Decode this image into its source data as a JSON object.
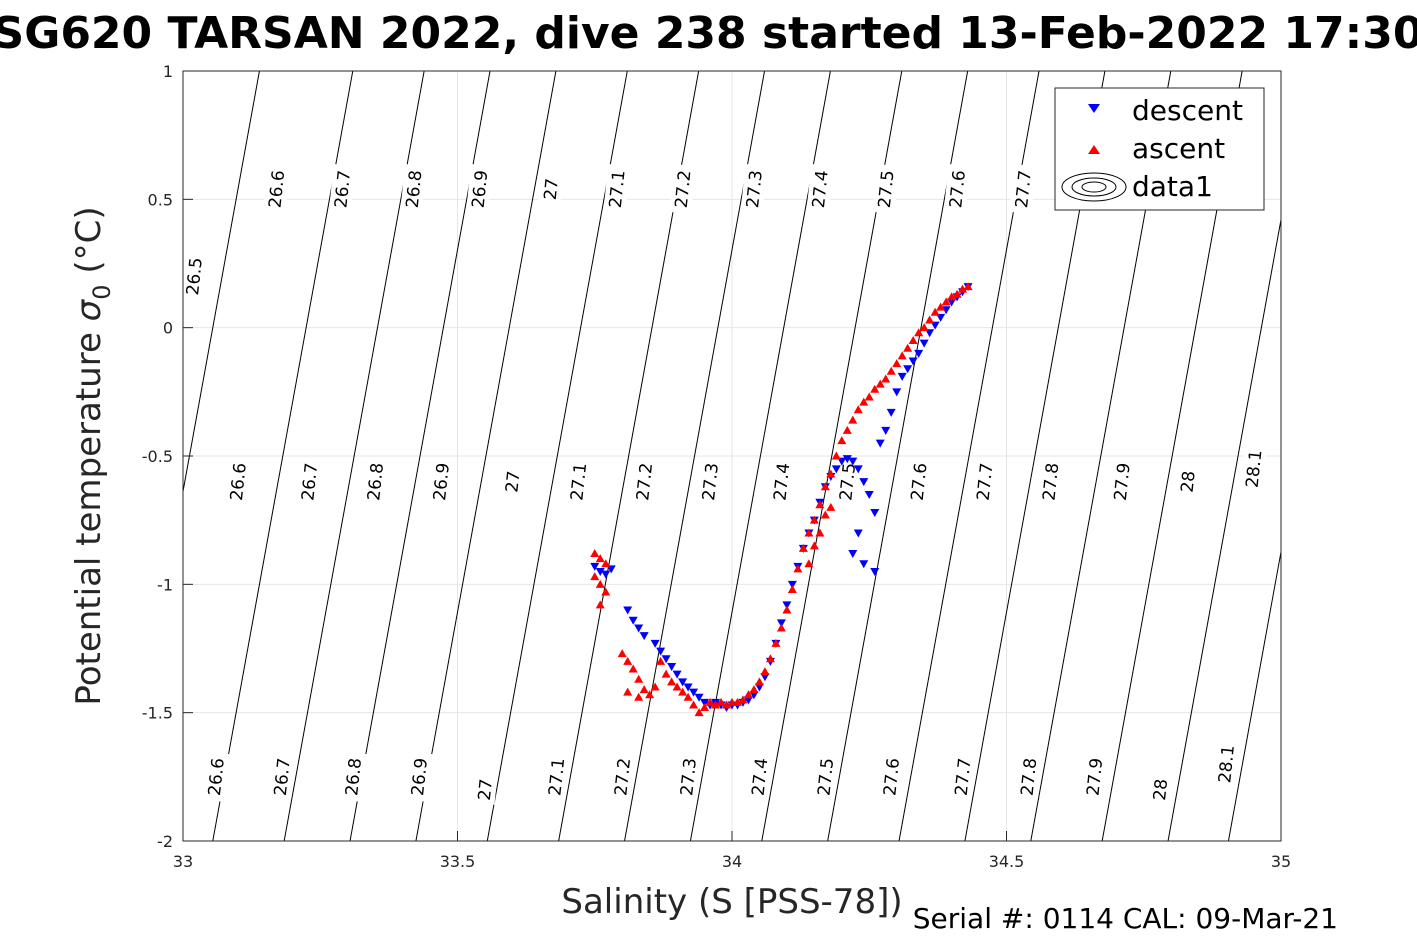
{
  "title": "SG620 TARSAN 2022, dive 238 started 13-Feb-2022 17:30",
  "footer": "Serial #: 0114  CAL: 09-Mar-21",
  "chart_data": {
    "type": "scatter",
    "title": "SG620 TARSAN 2022, dive 238 started 13-Feb-2022 17:30",
    "xlabel": "Salinity (S [PSS-78])",
    "ylabel_main": "Potential temperature ",
    "ylabel_sigma": "σ",
    "ylabel_sub": "0",
    "ylabel_unit": " (°C)",
    "xlim": [
      33,
      35
    ],
    "ylim": [
      -2,
      1
    ],
    "xticks": [
      "33",
      "33.5",
      "34",
      "34.5",
      "35"
    ],
    "yticks": [
      "-2",
      "-1.5",
      "-1",
      "-0.5",
      "0",
      "0.5",
      "1"
    ],
    "grid": true,
    "legend_position": "top-right",
    "legend": [
      "descent",
      "ascent",
      "data1"
    ],
    "colors": {
      "descent": "#0000ff",
      "ascent": "#ff0000",
      "contour": "#000000",
      "grid": "#e6e6e6",
      "axis": "#262626"
    },
    "contour_levels": [
      26.5,
      26.6,
      26.7,
      26.8,
      26.9,
      27.0,
      27.1,
      27.2,
      27.3,
      27.4,
      27.5,
      27.6,
      27.7,
      27.8,
      27.9,
      28.0,
      28.1
    ],
    "contour_salinity_at_minus2": [
      32.88,
      33.05,
      33.18,
      33.3,
      33.42,
      33.55,
      33.68,
      33.8,
      33.92,
      34.05,
      34.17,
      34.3,
      34.42,
      34.54,
      34.67,
      34.79,
      34.9
    ],
    "contour_slope_psu_per_degc": 0.085,
    "contour_labels": [
      {
        "text": "26.5",
        "s": 33.02,
        "t": 0.2
      },
      {
        "text": "26.6",
        "s": 33.17,
        "t": 0.54
      },
      {
        "text": "26.7",
        "s": 33.29,
        "t": 0.54
      },
      {
        "text": "26.8",
        "s": 33.42,
        "t": 0.54
      },
      {
        "text": "26.9",
        "s": 33.54,
        "t": 0.54
      },
      {
        "text": "27",
        "s": 33.67,
        "t": 0.54
      },
      {
        "text": "27.1",
        "s": 33.79,
        "t": 0.54
      },
      {
        "text": "27.2",
        "s": 33.91,
        "t": 0.54
      },
      {
        "text": "27.3",
        "s": 34.04,
        "t": 0.54
      },
      {
        "text": "27.4",
        "s": 34.16,
        "t": 0.54
      },
      {
        "text": "27.5",
        "s": 34.28,
        "t": 0.54
      },
      {
        "text": "27.6",
        "s": 34.41,
        "t": 0.54
      },
      {
        "text": "27.7",
        "s": 34.53,
        "t": 0.54
      },
      {
        "text": "26.6",
        "s": 33.1,
        "t": -0.6
      },
      {
        "text": "26.7",
        "s": 33.23,
        "t": -0.6
      },
      {
        "text": "26.8",
        "s": 33.35,
        "t": -0.6
      },
      {
        "text": "26.9",
        "s": 33.47,
        "t": -0.6
      },
      {
        "text": "27",
        "s": 33.6,
        "t": -0.6
      },
      {
        "text": "27.1",
        "s": 33.72,
        "t": -0.6
      },
      {
        "text": "27.2",
        "s": 33.84,
        "t": -0.6
      },
      {
        "text": "27.3",
        "s": 33.96,
        "t": -0.6
      },
      {
        "text": "27.4",
        "s": 34.09,
        "t": -0.6
      },
      {
        "text": "27.5",
        "s": 34.21,
        "t": -0.6
      },
      {
        "text": "27.6",
        "s": 34.34,
        "t": -0.6
      },
      {
        "text": "27.7",
        "s": 34.46,
        "t": -0.6
      },
      {
        "text": "27.8",
        "s": 34.58,
        "t": -0.6
      },
      {
        "text": "27.9",
        "s": 34.71,
        "t": -0.6
      },
      {
        "text": "28",
        "s": 34.83,
        "t": -0.6
      },
      {
        "text": "28.1",
        "s": 34.95,
        "t": -0.55
      },
      {
        "text": "26.6",
        "s": 33.06,
        "t": -1.75
      },
      {
        "text": "26.7",
        "s": 33.18,
        "t": -1.75
      },
      {
        "text": "26.8",
        "s": 33.31,
        "t": -1.75
      },
      {
        "text": "26.9",
        "s": 33.43,
        "t": -1.75
      },
      {
        "text": "27",
        "s": 33.55,
        "t": -1.8
      },
      {
        "text": "27.1",
        "s": 33.68,
        "t": -1.75
      },
      {
        "text": "27.2",
        "s": 33.8,
        "t": -1.75
      },
      {
        "text": "27.3",
        "s": 33.92,
        "t": -1.75
      },
      {
        "text": "27.4",
        "s": 34.05,
        "t": -1.75
      },
      {
        "text": "27.5",
        "s": 34.17,
        "t": -1.75
      },
      {
        "text": "27.6",
        "s": 34.29,
        "t": -1.75
      },
      {
        "text": "27.7",
        "s": 34.42,
        "t": -1.75
      },
      {
        "text": "27.8",
        "s": 34.54,
        "t": -1.75
      },
      {
        "text": "27.9",
        "s": 34.66,
        "t": -1.75
      },
      {
        "text": "28",
        "s": 34.78,
        "t": -1.8
      },
      {
        "text": "28.1",
        "s": 34.9,
        "t": -1.7
      }
    ],
    "series": [
      {
        "name": "descent",
        "marker": "triangle-down",
        "points": [
          [
            33.75,
            -0.93
          ],
          [
            33.76,
            -0.95
          ],
          [
            33.77,
            -0.96
          ],
          [
            33.78,
            -0.94
          ],
          [
            33.81,
            -1.1
          ],
          [
            33.82,
            -1.14
          ],
          [
            33.83,
            -1.17
          ],
          [
            33.84,
            -1.2
          ],
          [
            33.86,
            -1.23
          ],
          [
            33.87,
            -1.26
          ],
          [
            33.88,
            -1.29
          ],
          [
            33.89,
            -1.32
          ],
          [
            33.9,
            -1.35
          ],
          [
            33.91,
            -1.38
          ],
          [
            33.92,
            -1.4
          ],
          [
            33.93,
            -1.42
          ],
          [
            33.94,
            -1.44
          ],
          [
            33.95,
            -1.46
          ],
          [
            33.96,
            -1.47
          ],
          [
            33.97,
            -1.46
          ],
          [
            33.98,
            -1.47
          ],
          [
            33.99,
            -1.48
          ],
          [
            34.0,
            -1.47
          ],
          [
            34.01,
            -1.47
          ],
          [
            34.02,
            -1.46
          ],
          [
            34.03,
            -1.45
          ],
          [
            34.04,
            -1.43
          ],
          [
            34.05,
            -1.4
          ],
          [
            34.06,
            -1.36
          ],
          [
            34.07,
            -1.3
          ],
          [
            34.08,
            -1.23
          ],
          [
            34.09,
            -1.15
          ],
          [
            34.1,
            -1.08
          ],
          [
            34.11,
            -1.0
          ],
          [
            34.12,
            -0.93
          ],
          [
            34.13,
            -0.86
          ],
          [
            34.14,
            -0.8
          ],
          [
            34.15,
            -0.75
          ],
          [
            34.16,
            -0.68
          ],
          [
            34.17,
            -0.62
          ],
          [
            34.18,
            -0.58
          ],
          [
            34.19,
            -0.55
          ],
          [
            34.2,
            -0.52
          ],
          [
            34.21,
            -0.51
          ],
          [
            34.22,
            -0.52
          ],
          [
            34.23,
            -0.55
          ],
          [
            34.24,
            -0.6
          ],
          [
            34.25,
            -0.65
          ],
          [
            34.26,
            -0.72
          ],
          [
            34.23,
            -0.8
          ],
          [
            34.22,
            -0.88
          ],
          [
            34.24,
            -0.92
          ],
          [
            34.26,
            -0.95
          ],
          [
            34.27,
            -0.45
          ],
          [
            34.28,
            -0.4
          ],
          [
            34.29,
            -0.33
          ],
          [
            34.3,
            -0.25
          ],
          [
            34.31,
            -0.19
          ],
          [
            34.32,
            -0.16
          ],
          [
            34.33,
            -0.13
          ],
          [
            34.34,
            -0.1
          ],
          [
            34.35,
            -0.06
          ],
          [
            34.36,
            -0.02
          ],
          [
            34.37,
            0.01
          ],
          [
            34.38,
            0.04
          ],
          [
            34.39,
            0.07
          ],
          [
            34.4,
            0.1
          ],
          [
            34.41,
            0.12
          ],
          [
            34.42,
            0.14
          ],
          [
            34.43,
            0.16
          ]
        ]
      },
      {
        "name": "ascent",
        "marker": "triangle-up",
        "points": [
          [
            33.75,
            -0.88
          ],
          [
            33.76,
            -0.9
          ],
          [
            33.77,
            -0.92
          ],
          [
            33.75,
            -0.97
          ],
          [
            33.76,
            -1.0
          ],
          [
            33.77,
            -1.03
          ],
          [
            33.76,
            -1.08
          ],
          [
            33.8,
            -1.27
          ],
          [
            33.81,
            -1.3
          ],
          [
            33.82,
            -1.33
          ],
          [
            33.83,
            -1.37
          ],
          [
            33.84,
            -1.41
          ],
          [
            33.81,
            -1.42
          ],
          [
            33.83,
            -1.44
          ],
          [
            33.85,
            -1.43
          ],
          [
            33.86,
            -1.4
          ],
          [
            33.87,
            -1.3
          ],
          [
            33.88,
            -1.35
          ],
          [
            33.89,
            -1.38
          ],
          [
            33.9,
            -1.4
          ],
          [
            33.91,
            -1.42
          ],
          [
            33.92,
            -1.44
          ],
          [
            33.93,
            -1.47
          ],
          [
            33.94,
            -1.5
          ],
          [
            33.95,
            -1.48
          ],
          [
            33.96,
            -1.46
          ],
          [
            33.97,
            -1.47
          ],
          [
            33.98,
            -1.46
          ],
          [
            33.99,
            -1.47
          ],
          [
            34.0,
            -1.46
          ],
          [
            34.01,
            -1.46
          ],
          [
            34.02,
            -1.45
          ],
          [
            34.03,
            -1.43
          ],
          [
            34.04,
            -1.41
          ],
          [
            34.05,
            -1.38
          ],
          [
            34.06,
            -1.34
          ],
          [
            34.07,
            -1.29
          ],
          [
            34.08,
            -1.23
          ],
          [
            34.09,
            -1.17
          ],
          [
            34.1,
            -1.1
          ],
          [
            34.11,
            -1.02
          ],
          [
            34.12,
            -0.94
          ],
          [
            34.13,
            -0.86
          ],
          [
            34.14,
            -0.8
          ],
          [
            34.15,
            -0.75
          ],
          [
            34.16,
            -0.69
          ],
          [
            34.17,
            -0.62
          ],
          [
            34.18,
            -0.57
          ],
          [
            34.19,
            -0.5
          ],
          [
            34.2,
            -0.44
          ],
          [
            34.21,
            -0.4
          ],
          [
            34.22,
            -0.36
          ],
          [
            34.23,
            -0.32
          ],
          [
            34.24,
            -0.29
          ],
          [
            34.25,
            -0.27
          ],
          [
            34.26,
            -0.24
          ],
          [
            34.27,
            -0.22
          ],
          [
            34.28,
            -0.2
          ],
          [
            34.29,
            -0.17
          ],
          [
            34.3,
            -0.14
          ],
          [
            34.31,
            -0.11
          ],
          [
            34.32,
            -0.08
          ],
          [
            34.33,
            -0.05
          ],
          [
            34.34,
            -0.02
          ],
          [
            34.35,
            0.0
          ],
          [
            34.36,
            0.03
          ],
          [
            34.37,
            0.06
          ],
          [
            34.38,
            0.08
          ],
          [
            34.39,
            0.1
          ],
          [
            34.4,
            0.12
          ],
          [
            34.41,
            0.13
          ],
          [
            34.42,
            0.15
          ],
          [
            34.43,
            0.16
          ],
          [
            34.14,
            -0.92
          ],
          [
            34.15,
            -0.85
          ],
          [
            34.16,
            -0.8
          ],
          [
            34.17,
            -0.73
          ],
          [
            34.18,
            -0.7
          ]
        ]
      }
    ]
  }
}
